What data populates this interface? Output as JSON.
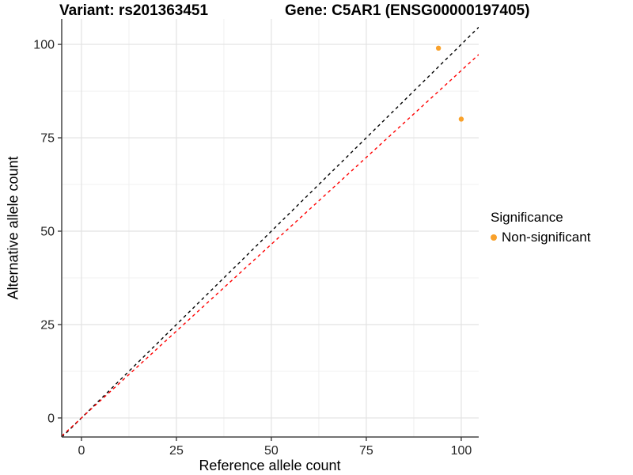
{
  "chart_data": {
    "type": "scatter",
    "title_variant": "Variant: rs201363451",
    "title_gene": "Gene: C5AR1 (ENSG00000197405)",
    "xlabel": "Reference allele count",
    "ylabel": "Alternative allele count",
    "xticks": [
      0,
      25,
      50,
      75,
      100
    ],
    "yticks": [
      0,
      25,
      50,
      75,
      100
    ],
    "xlim": [
      -5.2,
      104.6
    ],
    "ylim": [
      -5.1,
      106.8
    ],
    "minor_grid_offset": 12.5,
    "grid": true,
    "legend_position": "right",
    "series": [
      {
        "name": "Non-significant",
        "color": "#F9A12B",
        "points": [
          {
            "x": 94,
            "y": 99
          },
          {
            "x": 100,
            "y": 80
          }
        ]
      }
    ],
    "lines": [
      {
        "name": "identity-line",
        "slope": 1.0,
        "intercept": 0,
        "color": "#000000",
        "style": "dashed"
      },
      {
        "name": "allelic-ratio-line",
        "slope": 0.93,
        "intercept": 0,
        "color": "#FF0000",
        "style": "dashed"
      }
    ],
    "legend": {
      "title": "Significance",
      "items": [
        {
          "label": "Non-significant",
          "color": "#F9A12B"
        }
      ]
    },
    "colors": {
      "background": "#FFFFFF",
      "grid_major": "#E2E2E2",
      "grid_minor": "#F0F0F0",
      "axis_line": "#474747",
      "tick_mark": "#333333",
      "tick_label": "#262626",
      "point": "#F9A12B"
    }
  }
}
